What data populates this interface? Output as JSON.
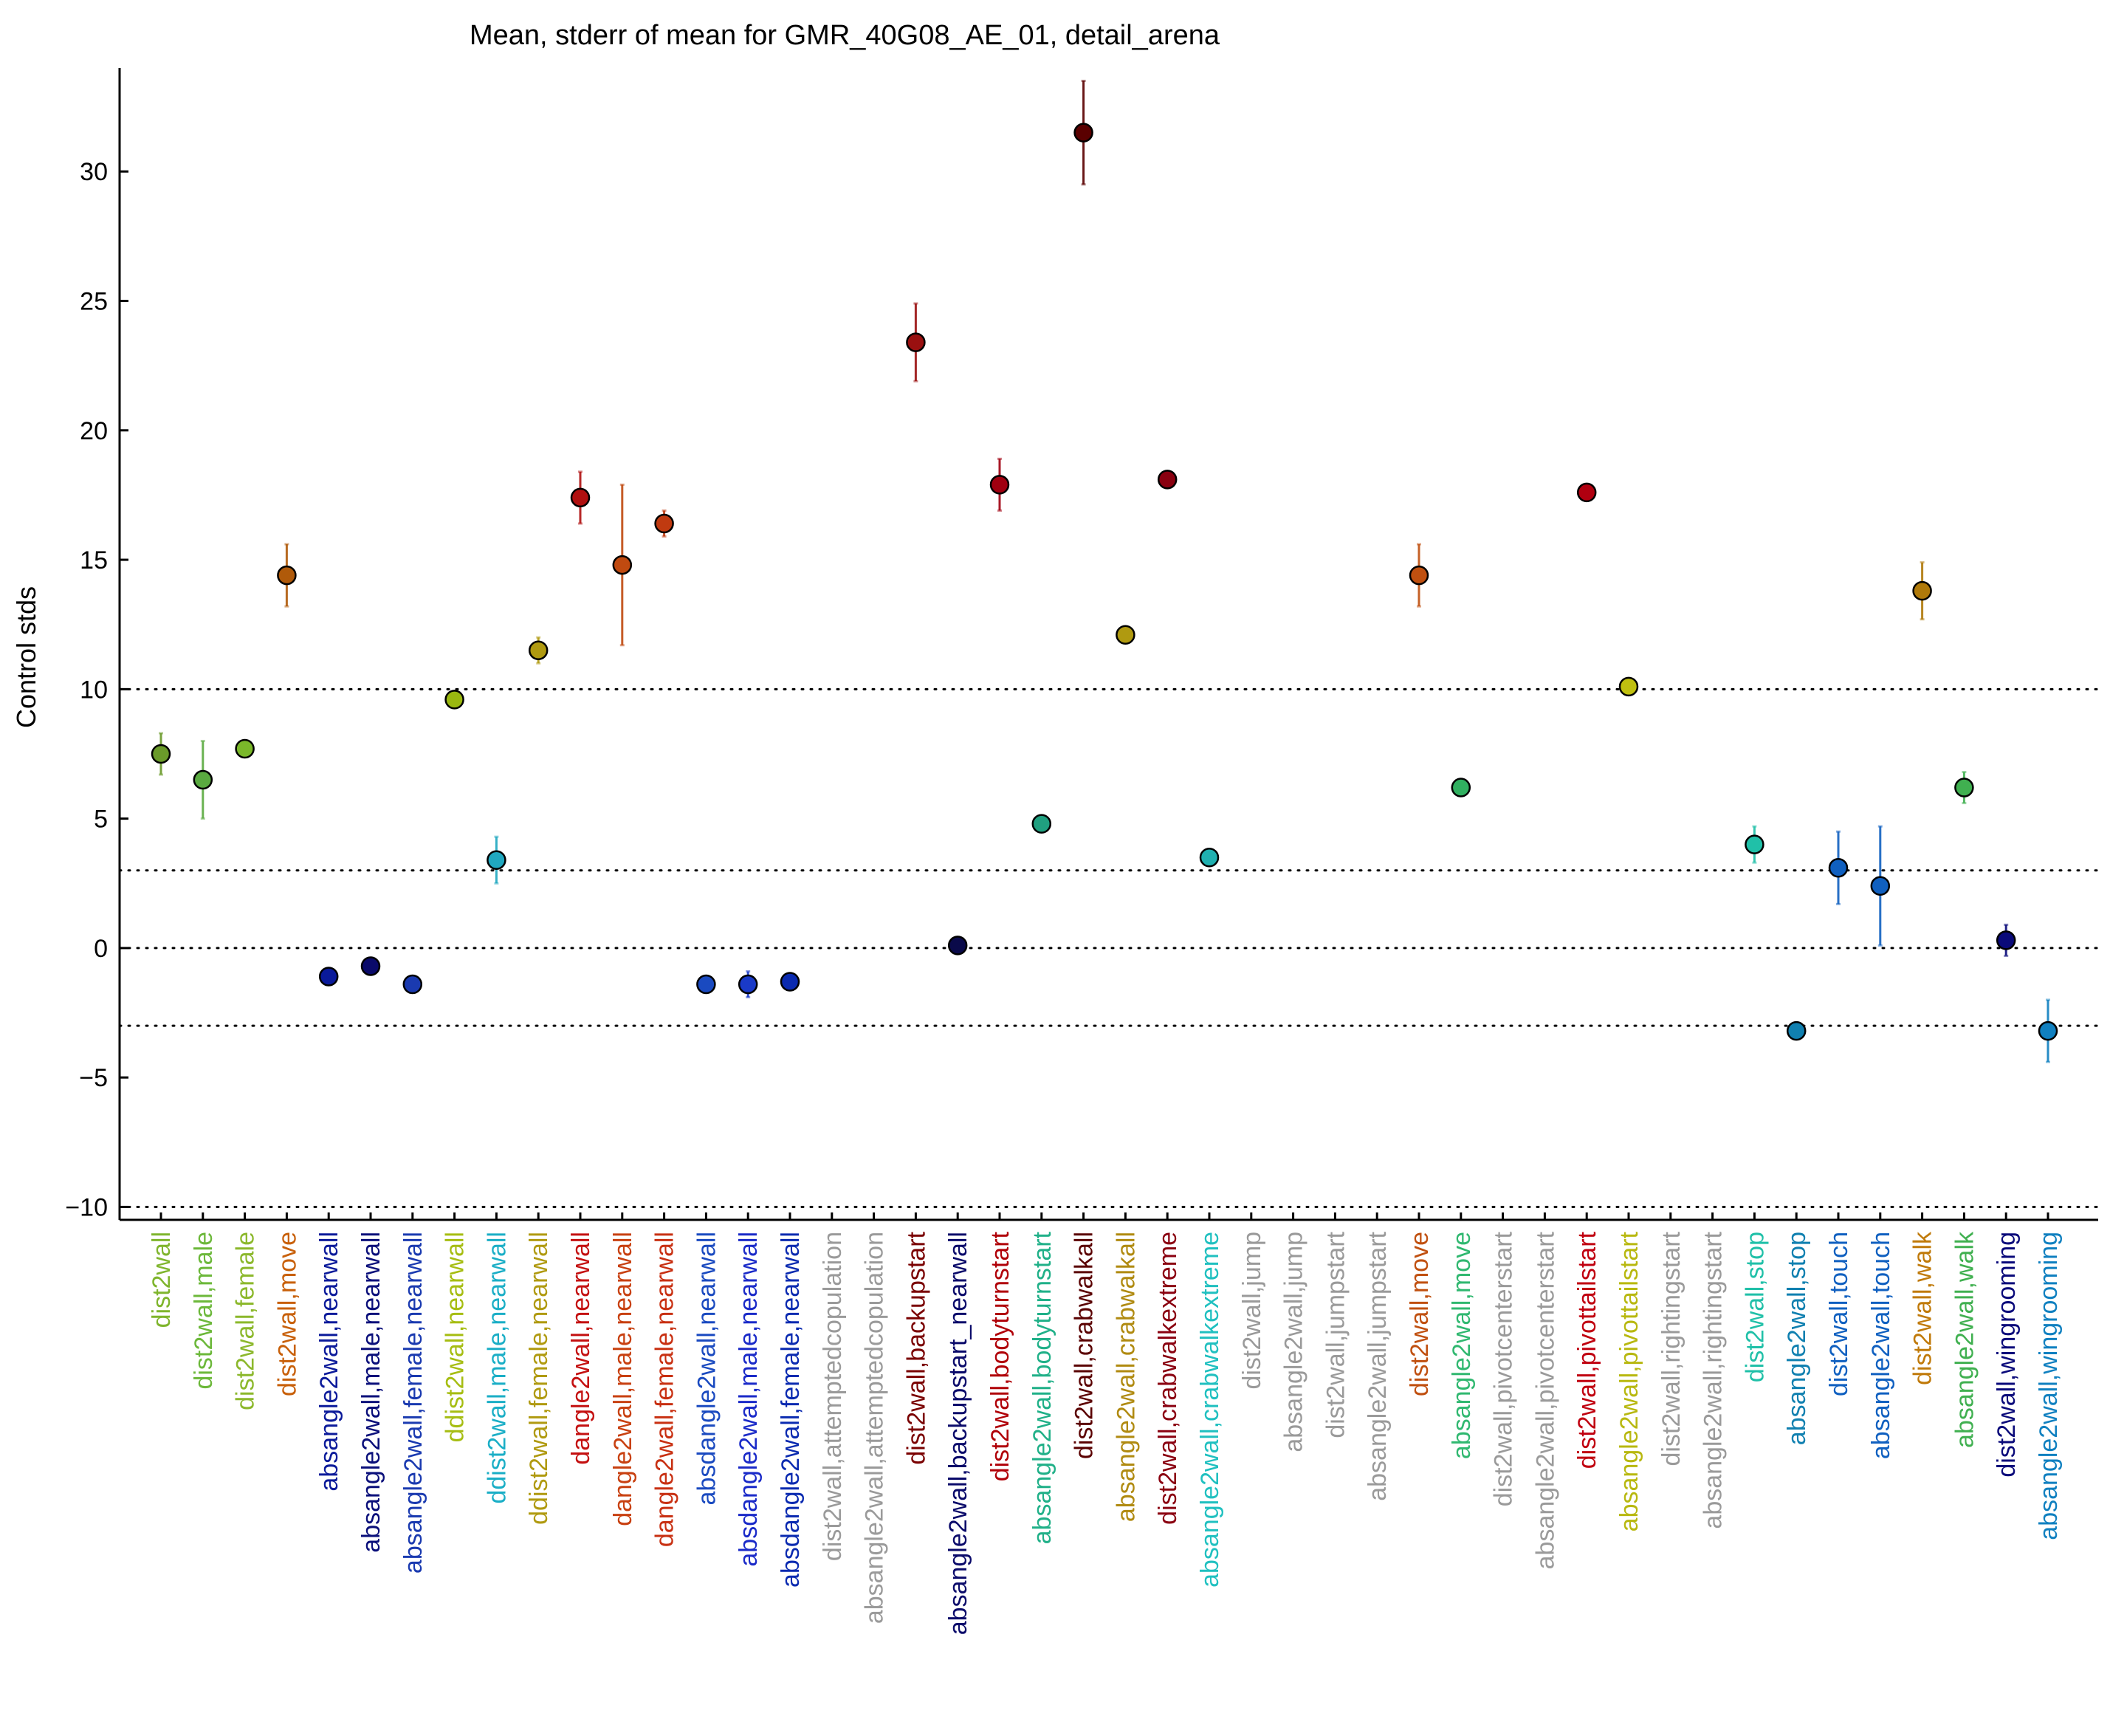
{
  "chart_data": {
    "type": "scatter",
    "title": "Mean, stderr of mean for GMR_40G08_AE_01, detail_arena",
    "ylabel": "Control stds",
    "xlabel": "",
    "ylim": [
      -10.5,
      34
    ],
    "yticks": [
      -10,
      -5,
      0,
      5,
      10,
      15,
      20,
      25,
      30
    ],
    "reference_lines": [
      -10,
      -3,
      0,
      3,
      10
    ],
    "grid": false,
    "categories": [
      "dist2wall",
      "dist2wall,male",
      "dist2wall,female",
      "dist2wall,move",
      "absangle2wall,nearwall",
      "absangle2wall,male,nearwall",
      "absangle2wall,female,nearwall",
      "ddist2wall,nearwall",
      "ddist2wall,male,nearwall",
      "ddist2wall,female,nearwall",
      "dangle2wall,nearwall",
      "dangle2wall,male,nearwall",
      "dangle2wall,female,nearwall",
      "absdangle2wall,nearwall",
      "absdangle2wall,male,nearwall",
      "absdangle2wall,female,nearwall",
      "dist2wall,attemptedcopulation",
      "absangle2wall,attemptedcopulation",
      "dist2wall,backupstart",
      "absangle2wall,backupstart_nearwall",
      "dist2wall,bodyturnstart",
      "absangle2wall,bodyturnstart",
      "dist2wall,crabwalkall",
      "absangle2wall,crabwalkall",
      "dist2wall,crabwalkextreme",
      "absangle2wall,crabwalkextreme",
      "dist2wall,jump",
      "absangle2wall,jump",
      "dist2wall,jumpstart",
      "absangle2wall,jumpstart",
      "dist2wall,move",
      "absangle2wall,move",
      "dist2wall,pivotcenterstart",
      "absangle2wall,pivotcenterstart",
      "dist2wall,pivottailstart",
      "absangle2wall,pivottailstart",
      "dist2wall,rightingstart",
      "absangle2wall,rightingstart",
      "dist2wall,stop",
      "absangle2wall,stop",
      "dist2wall,touch",
      "absangle2wall,touch",
      "dist2wall,walk",
      "absangle2wall,walk",
      "dist2wall,wingrooming",
      "absangle2wall,wingrooming"
    ],
    "label_colors": [
      "#7fb52d",
      "#6cb83a",
      "#8cb82c",
      "#c8600a",
      "#0b1a9a",
      "#0a0f7a",
      "#1a3ab0",
      "#a6bd12",
      "#1aaec6",
      "#b09a10",
      "#c41010",
      "#c84010",
      "#c83012",
      "#1a4ac0",
      "#1a2ac8",
      "#0a2ab0",
      "#9a9a9a",
      "#9a9a9a",
      "#7a0000",
      "#0a0a6a",
      "#b00008",
      "#20b088",
      "#5a0000",
      "#b08a10",
      "#8a0010",
      "#20c0c0",
      "#9a9a9a",
      "#9a9a9a",
      "#9a9a9a",
      "#9a9a9a",
      "#c05010",
      "#30b870",
      "#9a9a9a",
      "#9a9a9a",
      "#c00010",
      "#b8b810",
      "#9a9a9a",
      "#9a9a9a",
      "#20c0a8",
      "#1080b0",
      "#1060c0",
      "#1060c0",
      "#c07a0a",
      "#40b050",
      "#0a0a7a",
      "#1080c0"
    ],
    "series": [
      {
        "x_index": [
          0,
          1,
          2,
          3,
          4,
          5,
          6,
          7,
          8,
          9,
          10,
          11,
          12,
          13,
          14,
          15,
          18,
          19,
          20,
          21,
          22,
          23,
          24,
          25,
          30,
          31,
          34,
          35,
          38,
          39,
          40,
          41,
          42,
          43,
          44,
          45
        ],
        "values": [
          7.5,
          6.5,
          7.7,
          14.4,
          -1.1,
          -0.7,
          -1.4,
          9.6,
          3.4,
          11.5,
          17.4,
          14.8,
          16.4,
          -1.4,
          -1.4,
          -1.3,
          23.4,
          0.1,
          17.9,
          4.8,
          31.5,
          12.1,
          18.1,
          3.5,
          14.4,
          6.2,
          17.6,
          10.1,
          4.0,
          -3.2,
          3.1,
          2.4,
          13.8,
          6.2,
          0.3,
          -3.2
        ],
        "stderr": [
          0.8,
          1.5,
          0.2,
          1.2,
          0.1,
          0.1,
          0.1,
          0.2,
          0.9,
          0.5,
          1.0,
          3.1,
          0.5,
          0.2,
          0.5,
          0.2,
          1.5,
          0.2,
          1.0,
          0.2,
          2.0,
          0.2,
          0.2,
          0.2,
          1.2,
          0.2,
          0.2,
          0.2,
          0.7,
          0.1,
          1.4,
          2.3,
          1.1,
          0.6,
          0.6,
          1.2
        ],
        "marker_colors": [
          "#6a9a2a",
          "#5aaa40",
          "#7ab82a",
          "#b05a0a",
          "#0a1a9a",
          "#0a0a6a",
          "#1a3ab0",
          "#9ab810",
          "#20a8c0",
          "#b09a10",
          "#b01010",
          "#c04a10",
          "#c03a10",
          "#1a4ac0",
          "#1a3ac8",
          "#0a2ab0",
          "#9a1010",
          "#0a0a4a",
          "#a00010",
          "#20a080",
          "#5a0000",
          "#b09a10",
          "#8a0010",
          "#20b0b0",
          "#c05010",
          "#30b060",
          "#b00010",
          "#c0c010",
          "#20c0a8",
          "#1080b0",
          "#1060c0",
          "#1060c0",
          "#b07a0a",
          "#40b050",
          "#0a0a7a",
          "#1080c0"
        ]
      }
    ]
  }
}
